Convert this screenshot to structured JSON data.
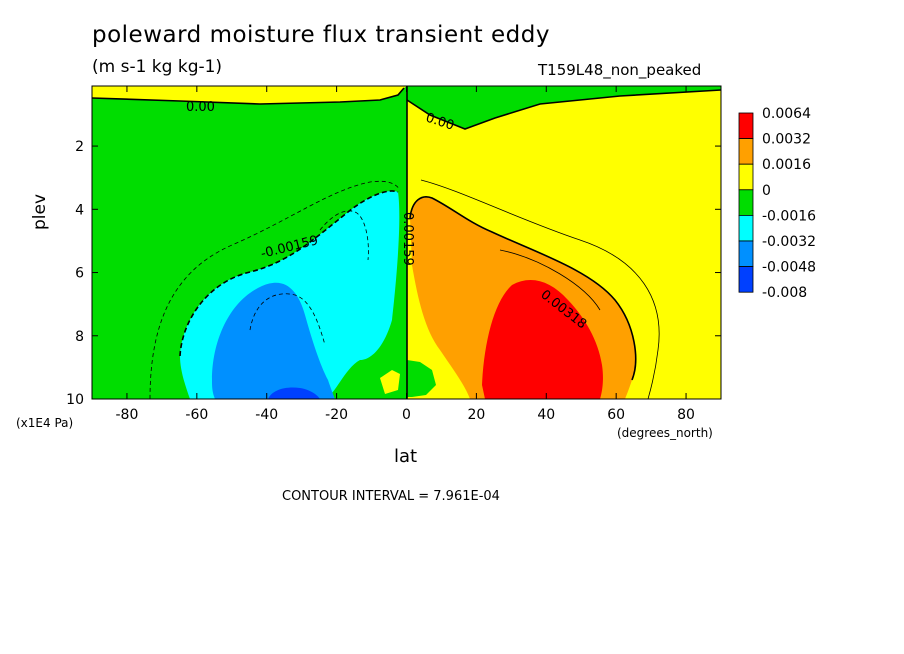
{
  "chart_data": {
    "type": "heatmap",
    "title": "poleward moisture flux transient eddy",
    "units": "(m s-1 kg kg-1)",
    "run_id": "T159L48_non_peaked",
    "xlabel": "lat",
    "xunit": "(degrees_north)",
    "ylabel": "plev",
    "yunit": "(x1E4 Pa)",
    "xlim": [
      -90,
      90
    ],
    "ylim": [
      10,
      0.1
    ],
    "x_ticks": [
      -80,
      -60,
      -40,
      -20,
      0,
      20,
      40,
      60,
      80
    ],
    "y_ticks": [
      2,
      4,
      6,
      8,
      10
    ],
    "contour_interval_note": "CONTOUR INTERVAL = 7.961E-04",
    "contour_labels": [
      "0.00",
      "0.00",
      "-0.00159",
      "0.00159",
      "0.00318"
    ],
    "legend": {
      "levels": [
        "0.0064",
        "0.0032",
        "0.0016",
        "0",
        "-0.0016",
        "-0.0032",
        "-0.0048",
        "-0.008"
      ],
      "colors": [
        "#ff0000",
        "#ffa000",
        "#ffff00",
        "#00dd00",
        "#00ffff",
        "#0090ff",
        "#0040ff"
      ]
    },
    "colors": {
      "positive_high": "#ff0000",
      "positive_mid": "#ffa000",
      "positive_low": "#ffff00",
      "negative_low": "#00dd00",
      "negative_mid": "#00ffff",
      "negative_high": "#0090ff",
      "negative_max": "#0040ff"
    }
  }
}
